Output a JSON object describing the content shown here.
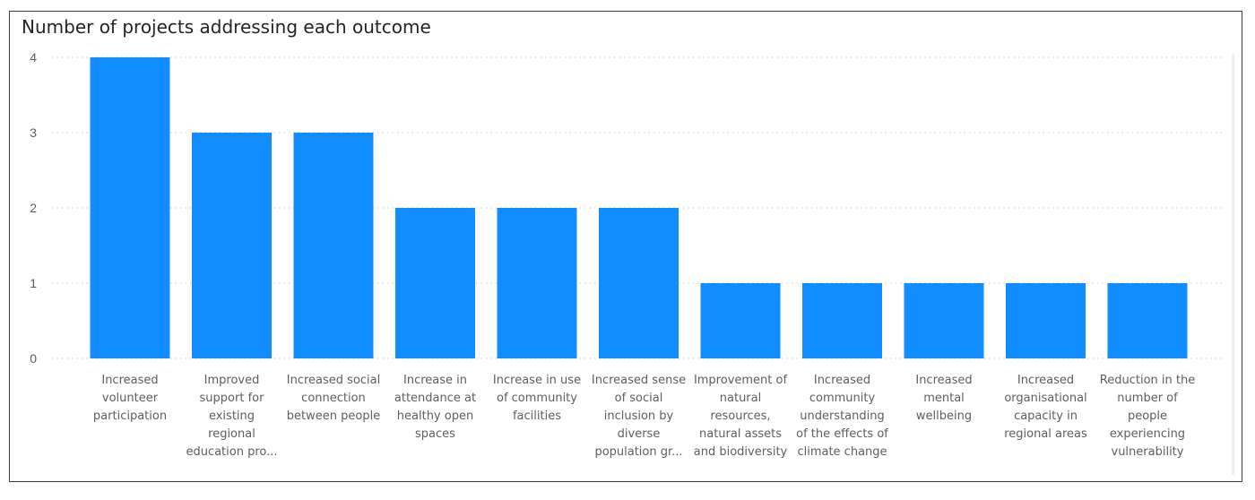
{
  "chart_data": {
    "type": "bar",
    "title": "Number of projects addressing each outcome",
    "xlabel": "",
    "ylabel": "",
    "ylim": [
      0,
      4
    ],
    "yticks": [
      "0",
      "1",
      "2",
      "3",
      "4"
    ],
    "grid": true,
    "color": "#118DFF",
    "categories": [
      "Increased volunteer participation",
      "Improved support for existing regional education pro...",
      "Increased social connection between people",
      "Increase in attendance at healthy open spaces",
      "Increase in use of community facilities",
      "Increased sense of social inclusion by diverse population gr...",
      "Improvement of natural resources, natural assets and biodiversity",
      "Increased community understanding of the effects of climate change",
      "Increased mental wellbeing",
      "Increased organisational capacity in regional areas",
      "Reduction in the number of people experiencing vulnerability"
    ],
    "category_label_lines": [
      "Increased\nvolunteer\nparticipation",
      "Improved\nsupport for\nexisting\nregional\neducation pro...",
      "Increased social\nconnection\nbetween people",
      "Increase in\nattendance at\nhealthy open\nspaces",
      "Increase in use\nof community\nfacilities",
      "Increased sense\nof social\ninclusion by\ndiverse\npopulation gr...",
      "Improvement of\nnatural\nresources,\nnatural assets\nand biodiversity",
      "Increased\ncommunity\nunderstanding\nof the effects of\nclimate change",
      "Increased\nmental\nwellbeing",
      "Increased\norganisational\ncapacity in\nregional areas",
      "Reduction in the\nnumber of\npeople\nexperiencing\nvulnerability"
    ],
    "values": [
      4,
      3,
      3,
      2,
      2,
      2,
      1,
      1,
      1,
      1,
      1
    ]
  }
}
